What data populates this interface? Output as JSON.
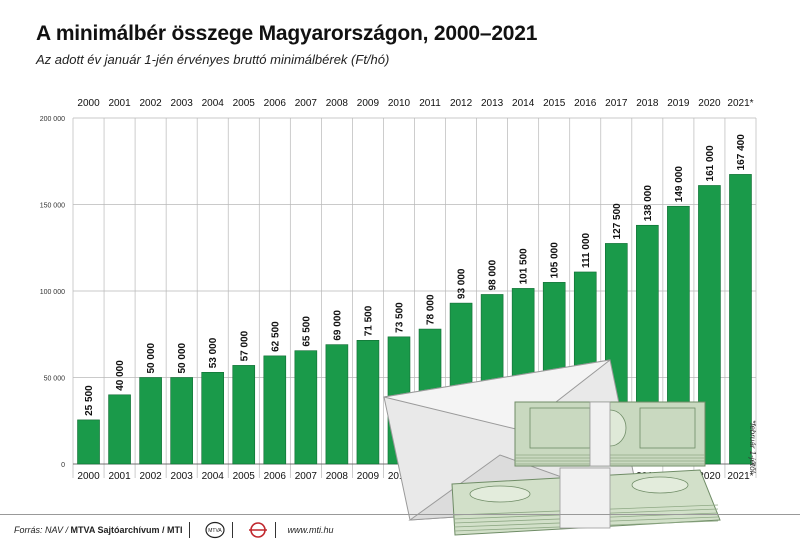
{
  "header": {
    "title": "A minimálbér összege Magyarországon, 2000–2021",
    "subtitle": "Az adott év január 1-jén érvényes bruttó minimálbérek (Ft/hó)"
  },
  "footnote": "*február 1-jétől",
  "footer": {
    "source_prefix": "Forrás: NAV /",
    "source_agency": "MTVA Sajtóarchívum / MTI",
    "url": "www.mti.hu",
    "logo1_text": "MTVA"
  },
  "colors": {
    "bar": "#1a9a4a",
    "bar_edge": "#0f6b32",
    "grid": "#b8b8b8",
    "text": "#111111"
  },
  "chart_data": {
    "type": "bar",
    "categories": [
      "2000",
      "2001",
      "2002",
      "2003",
      "2004",
      "2005",
      "2006",
      "2007",
      "2008",
      "2009",
      "2010",
      "2011",
      "2012",
      "2013",
      "2014",
      "2015",
      "2016",
      "2017",
      "2018",
      "2019",
      "2020",
      "2021*"
    ],
    "values": [
      25500,
      40000,
      50000,
      50000,
      53000,
      57000,
      62500,
      65500,
      69000,
      71500,
      73500,
      78000,
      93000,
      98000,
      101500,
      105000,
      111000,
      127500,
      138000,
      149000,
      161000,
      167400
    ],
    "value_labels": [
      "25 500",
      "40 000",
      "50 000",
      "50 000",
      "53 000",
      "57 000",
      "62 500",
      "65 500",
      "69 000",
      "71 500",
      "73 500",
      "78 000",
      "93 000",
      "98 000",
      "101 500",
      "105 000",
      "111 000",
      "127 500",
      "138 000",
      "149 000",
      "161 000",
      "167 400"
    ],
    "ylim": [
      0,
      200000
    ],
    "yticks": [
      0,
      50000,
      100000,
      150000,
      200000
    ],
    "ytick_labels": [
      "0",
      "50 000",
      "100 000",
      "150 000",
      "200 000"
    ],
    "grid": true,
    "year_labels_top": true,
    "year_labels_bottom": true
  }
}
